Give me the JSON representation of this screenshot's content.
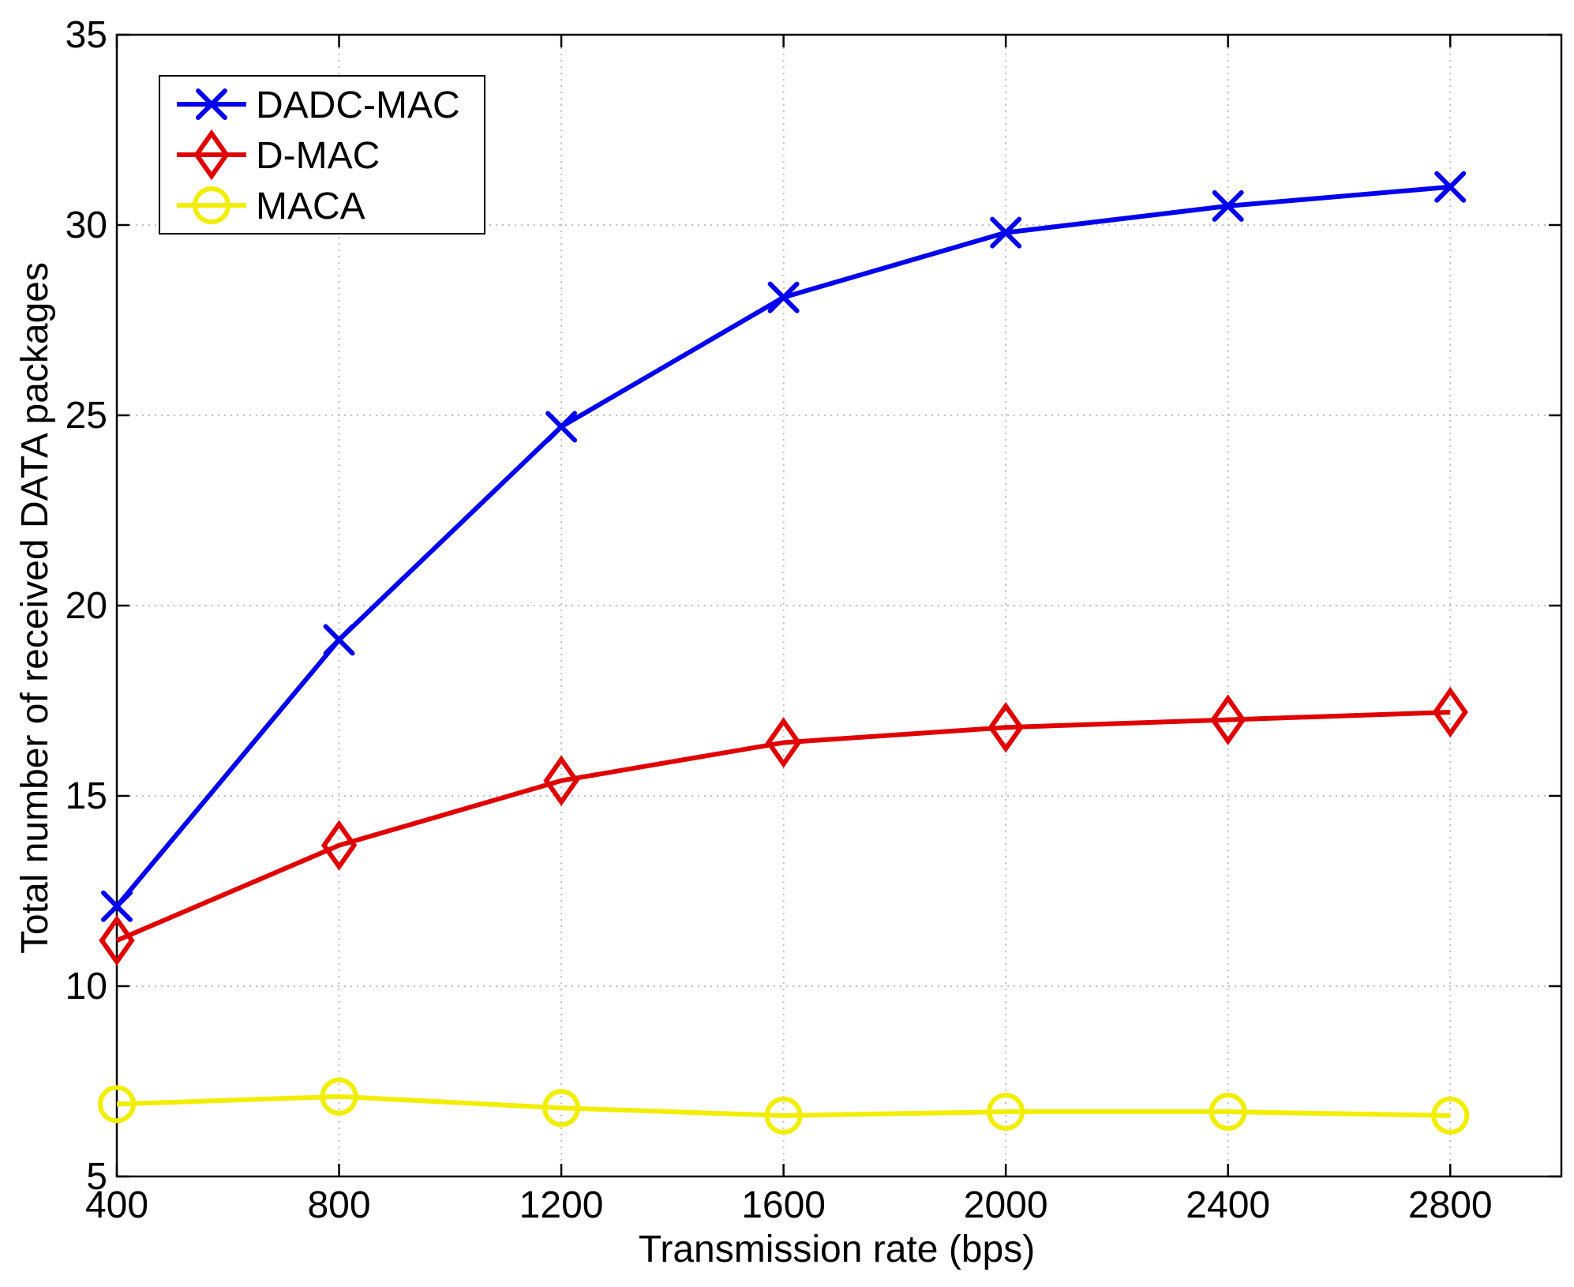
{
  "chart_data": {
    "type": "line",
    "title": "",
    "xlabel": "Transmission rate (bps)",
    "ylabel": "Total number of received DATA packages",
    "x": [
      400,
      800,
      1200,
      1600,
      2000,
      2400,
      2800
    ],
    "xlim": [
      400,
      3000
    ],
    "ylim": [
      5,
      35
    ],
    "xticks": [
      400,
      800,
      1200,
      1600,
      2000,
      2400,
      2800
    ],
    "yticks": [
      5,
      10,
      15,
      20,
      25,
      30,
      35
    ],
    "grid": true,
    "legend_position": "top-left",
    "series": [
      {
        "name": "DADC-MAC",
        "color": "#0000ee",
        "marker": "x",
        "values": [
          12.1,
          19.1,
          24.7,
          28.1,
          29.8,
          30.5,
          31.0
        ]
      },
      {
        "name": "D-MAC",
        "color": "#e00000",
        "marker": "diamond",
        "values": [
          11.2,
          13.7,
          15.4,
          16.4,
          16.8,
          17.0,
          17.2
        ]
      },
      {
        "name": "MACA",
        "color": "#f2ee00",
        "marker": "circle",
        "values": [
          6.9,
          7.1,
          6.8,
          6.6,
          6.7,
          6.7,
          6.6
        ]
      }
    ]
  }
}
